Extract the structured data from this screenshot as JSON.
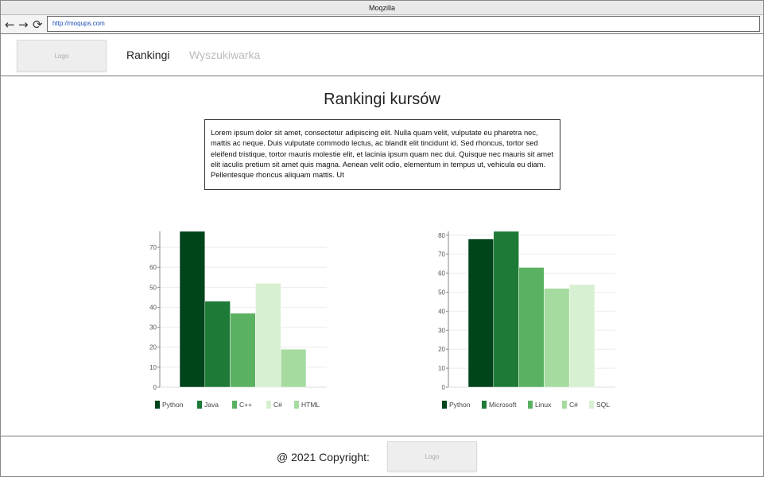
{
  "browser": {
    "title": "Moqzilla",
    "url": "http://moqups.com",
    "back_icon": "←",
    "forward_icon": "→",
    "reload_icon": "⟳"
  },
  "header": {
    "logo_label": "Logo",
    "nav": [
      {
        "label": "Rankingi",
        "color": "#222222"
      },
      {
        "label": "Wyszukiwarka",
        "color": "#bbbbbb"
      }
    ]
  },
  "main": {
    "title": "Rankingi kursów",
    "description": "Lorem ipsum dolor sit amet, consectetur adipiscing elit. Nulla quam velit, vulputate eu pharetra nec, mattis ac neque. Duis vulputate commodo lectus, ac blandit elit tincidunt id. Sed rhoncus, tortor sed eleifend tristique, tortor mauris molestie elit, et lacinia ipsum quam nec dui. Quisque nec mauris sit amet elit iaculis pretium sit amet quis magna. Aenean velit odio, elementum in tempus ut, vehicula eu diam. Pellentesque rhoncus aliquam mattis. Ut"
  },
  "chart_data": [
    {
      "type": "bar",
      "categories": [
        "Python",
        "Java",
        "C++",
        "C#",
        "HTML"
      ],
      "values": [
        78,
        43,
        37,
        52,
        19
      ],
      "colors": [
        "#00441b",
        "#1d7a37",
        "#5bb162",
        "#d7f0d1",
        "#a6dba0"
      ],
      "yticks": [
        0,
        10,
        20,
        30,
        40,
        50,
        60,
        70
      ],
      "ylim": [
        0,
        78
      ],
      "grid": true,
      "legend": "bottom"
    },
    {
      "type": "bar",
      "categories": [
        "Python",
        "Microsoft",
        "Linux",
        "C#",
        "SQL"
      ],
      "values": [
        78,
        82,
        63,
        52,
        54
      ],
      "colors": [
        "#00441b",
        "#1d7a37",
        "#5bb162",
        "#a6dba0",
        "#d7f0d1"
      ],
      "yticks": [
        0,
        10,
        20,
        30,
        40,
        50,
        60,
        70,
        80
      ],
      "ylim": [
        0,
        82
      ],
      "grid": true,
      "legend": "bottom"
    }
  ],
  "footer": {
    "copyright": "@ 2021 Copyright:",
    "logo_label": "Logo"
  }
}
